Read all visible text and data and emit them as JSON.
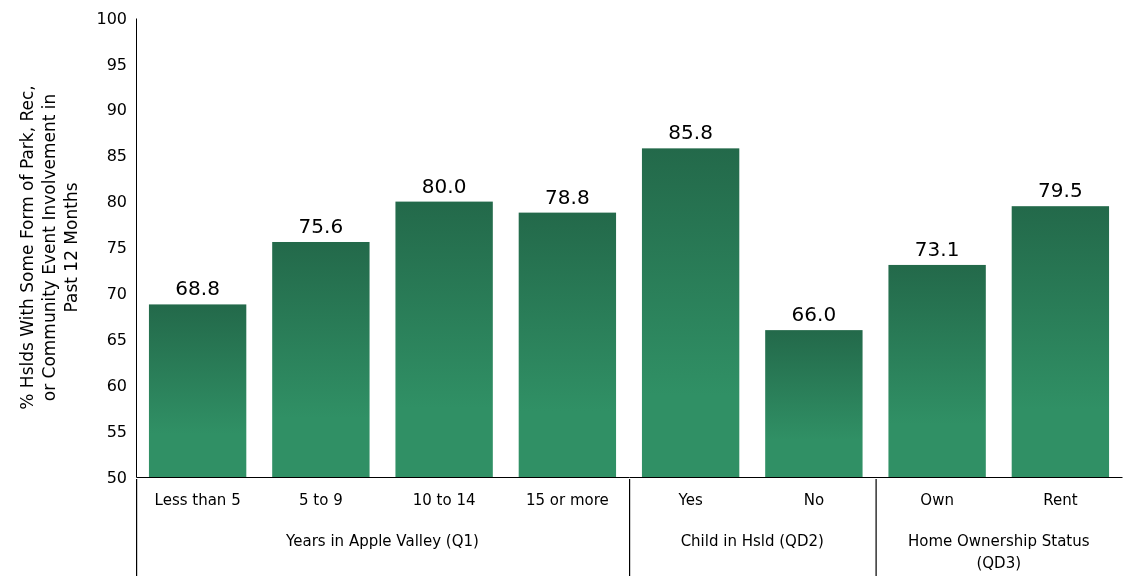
{
  "chart_data": [
    {
      "type": "bar",
      "ylabel": "% Hslds With Some Form of Park, Rec, or Community Event Involvement in Past 12 Months",
      "xlabel": "Years in Apple Valley (Q1)",
      "categories": [
        "Less than 5",
        "5 to 9",
        "10 to 14",
        "15 or more"
      ],
      "values": [
        68.8,
        75.6,
        80.0,
        78.8
      ],
      "value_labels": [
        "68.8",
        "75.6",
        "80.0",
        "78.8"
      ],
      "color": "#2a7d58",
      "ylim": [
        50,
        100
      ],
      "yticks": [
        50,
        55,
        60,
        65,
        70,
        75,
        80,
        85,
        90,
        95,
        100
      ]
    },
    {
      "type": "bar",
      "xlabel": "Child in Hsld (QD2)",
      "categories": [
        "Yes",
        "No"
      ],
      "values": [
        85.8,
        66.0
      ],
      "value_labels": [
        "85.8",
        "66.0"
      ],
      "color": "#2a7d58",
      "ylim": [
        50,
        100
      ],
      "tick_labels": "x"
    },
    {
      "type": "bar",
      "xlabel": "Home Ownership Status (QD3)",
      "categories": [
        "Own",
        "Rent"
      ],
      "values": [
        73.1,
        79.5
      ],
      "value_labels": [
        "73.1",
        "79.5"
      ],
      "color": "#2a7d58",
      "ylim": [
        50,
        100
      ],
      "tick_labels": "x"
    }
  ]
}
